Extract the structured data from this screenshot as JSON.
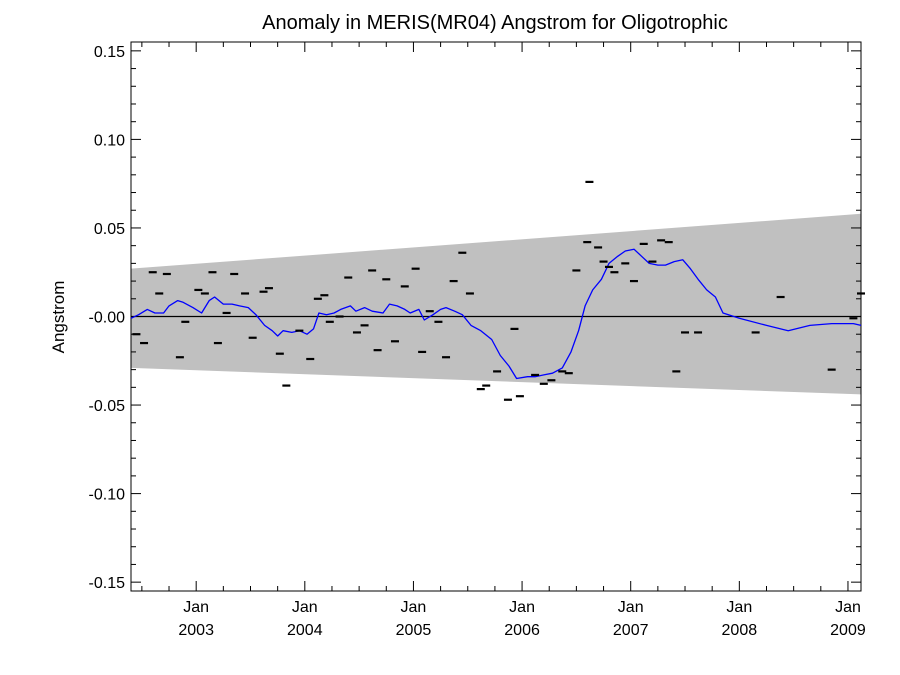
{
  "chart_data": {
    "type": "line",
    "title": "Anomaly in MERIS(MR04) Angstrom for Oligotrophic",
    "xlabel": "",
    "ylabel": "Angstrom",
    "xlim": [
      2002.4,
      2009.12
    ],
    "ylim": [
      -0.155,
      0.155
    ],
    "y_ticks": [
      0.15,
      0.1,
      0.05,
      0.0,
      -0.05,
      -0.1,
      -0.15
    ],
    "y_tick_labels": [
      "0.15",
      "0.10",
      "0.05",
      "-0.00",
      "-0.05",
      "-0.10",
      "-0.15"
    ],
    "x_ticks": [
      {
        "x": 2003.0,
        "month": "Jan",
        "year": "2003"
      },
      {
        "x": 2004.0,
        "month": "Jan",
        "year": "2004"
      },
      {
        "x": 2005.0,
        "month": "Jan",
        "year": "2005"
      },
      {
        "x": 2006.0,
        "month": "Jan",
        "year": "2006"
      },
      {
        "x": 2007.0,
        "month": "Jan",
        "year": "2007"
      },
      {
        "x": 2008.0,
        "month": "Jan",
        "year": "2008"
      },
      {
        "x": 2009.0,
        "month": "Jan",
        "year": "2009"
      }
    ],
    "confidence_band": {
      "x": [
        2002.4,
        2009.12
      ],
      "upper": [
        0.027,
        0.058
      ],
      "lower": [
        -0.029,
        -0.044
      ],
      "color": "#c0c0c0"
    },
    "zero_line": {
      "y": 0.0,
      "color": "#000000"
    },
    "series": [
      {
        "kind": "line",
        "color": "#0000ff",
        "points": [
          [
            2002.4,
            -0.001
          ],
          [
            2002.47,
            0.001
          ],
          [
            2002.55,
            0.004
          ],
          [
            2002.62,
            0.002
          ],
          [
            2002.7,
            0.002
          ],
          [
            2002.75,
            0.006
          ],
          [
            2002.83,
            0.009
          ],
          [
            2002.88,
            0.008
          ],
          [
            2002.97,
            0.005
          ],
          [
            2003.05,
            0.002
          ],
          [
            2003.12,
            0.009
          ],
          [
            2003.17,
            0.011
          ],
          [
            2003.25,
            0.007
          ],
          [
            2003.33,
            0.007
          ],
          [
            2003.4,
            0.006
          ],
          [
            2003.48,
            0.005
          ],
          [
            2003.55,
            0.001
          ],
          [
            2003.63,
            -0.005
          ],
          [
            2003.7,
            -0.008
          ],
          [
            2003.75,
            -0.011
          ],
          [
            2003.8,
            -0.008
          ],
          [
            2003.88,
            -0.009
          ],
          [
            2003.95,
            -0.008
          ],
          [
            2004.02,
            -0.01
          ],
          [
            2004.08,
            -0.007
          ],
          [
            2004.13,
            0.002
          ],
          [
            2004.2,
            0.001
          ],
          [
            2004.27,
            0.002
          ],
          [
            2004.33,
            0.004
          ],
          [
            2004.42,
            0.006
          ],
          [
            2004.47,
            0.003
          ],
          [
            2004.55,
            0.005
          ],
          [
            2004.62,
            0.003
          ],
          [
            2004.72,
            0.002
          ],
          [
            2004.78,
            0.007
          ],
          [
            2004.85,
            0.006
          ],
          [
            2004.92,
            0.004
          ],
          [
            2004.97,
            0.002
          ],
          [
            2005.05,
            0.004
          ],
          [
            2005.1,
            -0.002
          ],
          [
            2005.18,
            0.001
          ],
          [
            2005.25,
            0.004
          ],
          [
            2005.3,
            0.005
          ],
          [
            2005.38,
            0.003
          ],
          [
            2005.45,
            0.001
          ],
          [
            2005.53,
            -0.005
          ],
          [
            2005.62,
            -0.008
          ],
          [
            2005.72,
            -0.013
          ],
          [
            2005.8,
            -0.022
          ],
          [
            2005.88,
            -0.028
          ],
          [
            2005.95,
            -0.035
          ],
          [
            2006.05,
            -0.034
          ],
          [
            2006.12,
            -0.034
          ],
          [
            2006.2,
            -0.033
          ],
          [
            2006.28,
            -0.032
          ],
          [
            2006.37,
            -0.029
          ],
          [
            2006.45,
            -0.02
          ],
          [
            2006.52,
            -0.008
          ],
          [
            2006.58,
            0.006
          ],
          [
            2006.65,
            0.015
          ],
          [
            2006.73,
            0.021
          ],
          [
            2006.8,
            0.03
          ],
          [
            2006.88,
            0.034
          ],
          [
            2006.95,
            0.037
          ],
          [
            2007.03,
            0.038
          ],
          [
            2007.1,
            0.034
          ],
          [
            2007.17,
            0.03
          ],
          [
            2007.25,
            0.029
          ],
          [
            2007.32,
            0.029
          ],
          [
            2007.4,
            0.031
          ],
          [
            2007.48,
            0.032
          ],
          [
            2007.55,
            0.027
          ],
          [
            2007.62,
            0.021
          ],
          [
            2007.7,
            0.015
          ],
          [
            2007.78,
            0.011
          ],
          [
            2007.85,
            0.002
          ],
          [
            2008.0,
            -0.001
          ],
          [
            2008.25,
            -0.005
          ],
          [
            2008.45,
            -0.008
          ],
          [
            2008.65,
            -0.005
          ],
          [
            2008.85,
            -0.004
          ],
          [
            2009.05,
            -0.004
          ],
          [
            2009.12,
            -0.005
          ]
        ]
      },
      {
        "kind": "markers",
        "marker": "dash",
        "color": "#000000",
        "points": [
          [
            2002.45,
            -0.01
          ],
          [
            2002.52,
            -0.015
          ],
          [
            2002.6,
            0.025
          ],
          [
            2002.66,
            0.013
          ],
          [
            2002.73,
            0.024
          ],
          [
            2002.85,
            -0.023
          ],
          [
            2002.9,
            -0.003
          ],
          [
            2003.02,
            0.015
          ],
          [
            2003.08,
            0.013
          ],
          [
            2003.15,
            0.025
          ],
          [
            2003.2,
            -0.015
          ],
          [
            2003.28,
            0.002
          ],
          [
            2003.35,
            0.024
          ],
          [
            2003.45,
            0.013
          ],
          [
            2003.52,
            -0.012
          ],
          [
            2003.62,
            0.014
          ],
          [
            2003.67,
            0.016
          ],
          [
            2003.77,
            -0.021
          ],
          [
            2003.83,
            -0.039
          ],
          [
            2003.95,
            -0.008
          ],
          [
            2004.05,
            -0.024
          ],
          [
            2004.12,
            0.01
          ],
          [
            2004.18,
            0.012
          ],
          [
            2004.23,
            -0.003
          ],
          [
            2004.32,
            0.0
          ],
          [
            2004.4,
            0.022
          ],
          [
            2004.48,
            -0.009
          ],
          [
            2004.55,
            -0.005
          ],
          [
            2004.62,
            0.026
          ],
          [
            2004.67,
            -0.019
          ],
          [
            2004.75,
            0.021
          ],
          [
            2004.83,
            -0.014
          ],
          [
            2004.92,
            0.017
          ],
          [
            2005.02,
            0.027
          ],
          [
            2005.08,
            -0.02
          ],
          [
            2005.15,
            0.003
          ],
          [
            2005.23,
            -0.003
          ],
          [
            2005.3,
            -0.023
          ],
          [
            2005.37,
            0.02
          ],
          [
            2005.45,
            0.036
          ],
          [
            2005.52,
            0.013
          ],
          [
            2005.62,
            -0.041
          ],
          [
            2005.67,
            -0.039
          ],
          [
            2005.77,
            -0.031
          ],
          [
            2005.87,
            -0.047
          ],
          [
            2005.93,
            -0.007
          ],
          [
            2005.98,
            -0.045
          ],
          [
            2006.12,
            -0.033
          ],
          [
            2006.2,
            -0.038
          ],
          [
            2006.27,
            -0.036
          ],
          [
            2006.37,
            -0.031
          ],
          [
            2006.43,
            -0.032
          ],
          [
            2006.5,
            0.026
          ],
          [
            2006.6,
            0.042
          ],
          [
            2006.62,
            0.076
          ],
          [
            2006.7,
            0.039
          ],
          [
            2006.75,
            0.031
          ],
          [
            2006.8,
            0.028
          ],
          [
            2006.85,
            0.025
          ],
          [
            2006.95,
            0.03
          ],
          [
            2007.03,
            0.02
          ],
          [
            2007.12,
            0.041
          ],
          [
            2007.2,
            0.031
          ],
          [
            2007.28,
            0.043
          ],
          [
            2007.35,
            0.042
          ],
          [
            2007.42,
            -0.031
          ],
          [
            2007.5,
            -0.009
          ],
          [
            2007.62,
            -0.009
          ],
          [
            2008.15,
            -0.009
          ],
          [
            2008.38,
            0.011
          ],
          [
            2008.85,
            -0.03
          ],
          [
            2009.05,
            -0.001
          ],
          [
            2009.12,
            0.013
          ]
        ]
      }
    ]
  }
}
